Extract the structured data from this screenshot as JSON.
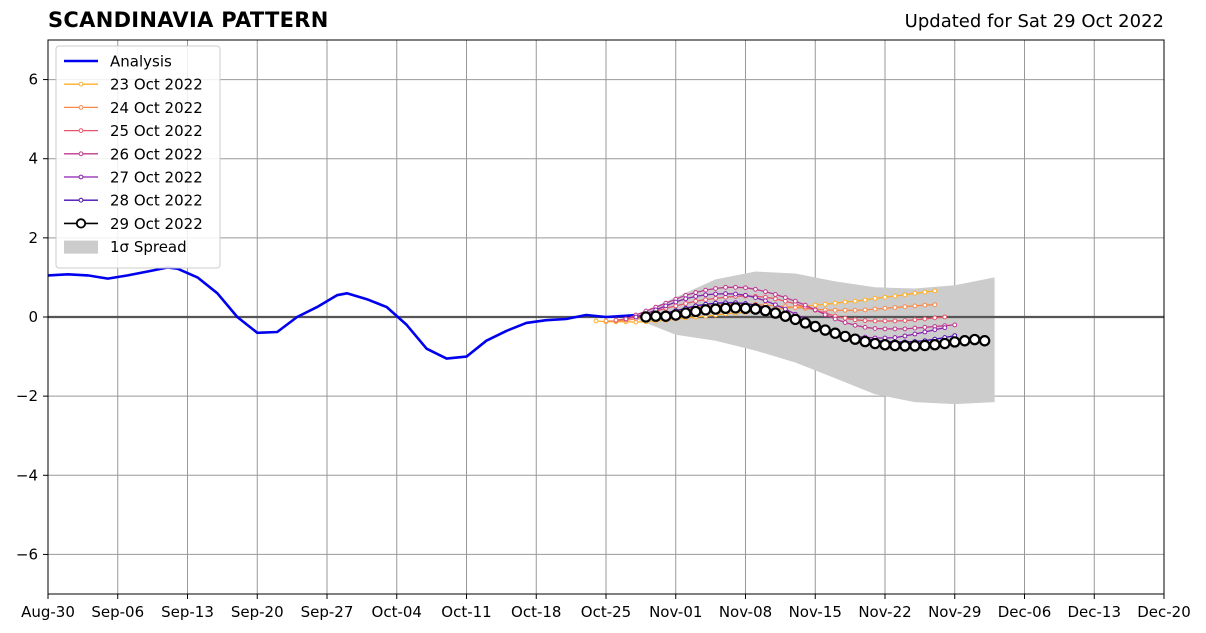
{
  "chart_data": {
    "type": "line",
    "title": "SCANDINAVIA PATTERN",
    "subtitle": "Updated for Sat 29 Oct 2022",
    "xlabel": "",
    "ylabel": "",
    "x_range": [
      "2022-08-30",
      "2022-12-20"
    ],
    "ylim": [
      -7,
      7
    ],
    "x_ticks": [
      "Aug-30",
      "Sep-06",
      "Sep-13",
      "Sep-20",
      "Sep-27",
      "Oct-04",
      "Oct-11",
      "Oct-18",
      "Oct-25",
      "Nov-01",
      "Nov-08",
      "Nov-15",
      "Nov-22",
      "Nov-29",
      "Dec-06",
      "Dec-13",
      "Dec-20"
    ],
    "x_tick_dates": [
      "2022-08-30",
      "2022-09-06",
      "2022-09-13",
      "2022-09-20",
      "2022-09-27",
      "2022-10-04",
      "2022-10-11",
      "2022-10-18",
      "2022-10-25",
      "2022-11-01",
      "2022-11-08",
      "2022-11-15",
      "2022-11-22",
      "2022-11-29",
      "2022-12-06",
      "2022-12-13",
      "2022-12-20"
    ],
    "y_ticks": [
      6,
      4,
      2,
      0,
      -2,
      -4,
      -6
    ],
    "y_tick_labels": [
      "6",
      "4",
      "2",
      "0",
      "−2",
      "−4",
      "−6"
    ],
    "grid": true,
    "legend_position": "upper-left",
    "analysis": {
      "name": "Analysis",
      "color": "#0000ee",
      "points": [
        [
          "2022-08-30",
          1.05
        ],
        [
          "2022-09-01",
          1.08
        ],
        [
          "2022-09-03",
          1.05
        ],
        [
          "2022-09-05",
          0.97
        ],
        [
          "2022-09-07",
          1.05
        ],
        [
          "2022-09-09",
          1.15
        ],
        [
          "2022-09-11",
          1.25
        ],
        [
          "2022-09-12",
          1.22
        ],
        [
          "2022-09-14",
          1.0
        ],
        [
          "2022-09-16",
          0.6
        ],
        [
          "2022-09-18",
          0.0
        ],
        [
          "2022-09-20",
          -0.4
        ],
        [
          "2022-09-22",
          -0.38
        ],
        [
          "2022-09-24",
          0.0
        ],
        [
          "2022-09-26",
          0.25
        ],
        [
          "2022-09-28",
          0.55
        ],
        [
          "2022-09-29",
          0.6
        ],
        [
          "2022-10-01",
          0.45
        ],
        [
          "2022-10-03",
          0.25
        ],
        [
          "2022-10-05",
          -0.2
        ],
        [
          "2022-10-07",
          -0.8
        ],
        [
          "2022-10-09",
          -1.05
        ],
        [
          "2022-10-11",
          -1.0
        ],
        [
          "2022-10-13",
          -0.6
        ],
        [
          "2022-10-15",
          -0.35
        ],
        [
          "2022-10-17",
          -0.15
        ],
        [
          "2022-10-19",
          -0.08
        ],
        [
          "2022-10-21",
          -0.05
        ],
        [
          "2022-10-23",
          0.05
        ],
        [
          "2022-10-25",
          0.0
        ],
        [
          "2022-10-27",
          0.03
        ],
        [
          "2022-10-28",
          0.05
        ]
      ]
    },
    "spread": {
      "name": "1σ Spread",
      "color": "#cccccc",
      "upper": [
        [
          "2022-10-28",
          0.05
        ],
        [
          "2022-11-01",
          0.5
        ],
        [
          "2022-11-05",
          0.95
        ],
        [
          "2022-11-09",
          1.15
        ],
        [
          "2022-11-13",
          1.1
        ],
        [
          "2022-11-17",
          0.9
        ],
        [
          "2022-11-21",
          0.75
        ],
        [
          "2022-11-25",
          0.72
        ],
        [
          "2022-11-29",
          0.8
        ],
        [
          "2022-12-03",
          1.0
        ]
      ],
      "lower": [
        [
          "2022-10-28",
          -0.05
        ],
        [
          "2022-11-01",
          -0.45
        ],
        [
          "2022-11-05",
          -0.6
        ],
        [
          "2022-11-09",
          -0.85
        ],
        [
          "2022-11-13",
          -1.15
        ],
        [
          "2022-11-17",
          -1.55
        ],
        [
          "2022-11-21",
          -1.95
        ],
        [
          "2022-11-25",
          -2.15
        ],
        [
          "2022-11-29",
          -2.2
        ],
        [
          "2022-12-03",
          -2.15
        ]
      ]
    },
    "forecasts": [
      {
        "name": "23 Oct 2022",
        "color": "#ffae2b",
        "start": "2022-10-24",
        "values": [
          -0.1,
          -0.12,
          -0.12,
          -0.12,
          -0.13,
          -0.12,
          -0.1,
          -0.08,
          -0.05,
          -0.02,
          0.0,
          0.02,
          0.05,
          0.08,
          0.1,
          0.12,
          0.15,
          0.18,
          0.2,
          0.22,
          0.25,
          0.27,
          0.3,
          0.32,
          0.35,
          0.38,
          0.4,
          0.43,
          0.47,
          0.5,
          0.53,
          0.56,
          0.6,
          0.63,
          0.66
        ]
      },
      {
        "name": "24 Oct 2022",
        "color": "#f88a4a",
        "start": "2022-10-25",
        "values": [
          -0.1,
          -0.1,
          -0.08,
          -0.05,
          0.0,
          0.05,
          0.1,
          0.15,
          0.2,
          0.25,
          0.28,
          0.3,
          0.32,
          0.33,
          0.33,
          0.32,
          0.3,
          0.28,
          0.26,
          0.24,
          0.22,
          0.2,
          0.18,
          0.17,
          0.17,
          0.17,
          0.18,
          0.2,
          0.22,
          0.24,
          0.26,
          0.28,
          0.3,
          0.31
        ]
      },
      {
        "name": "25 Oct 2022",
        "color": "#e8546a",
        "start": "2022-10-26",
        "values": [
          -0.08,
          -0.05,
          0.0,
          0.08,
          0.15,
          0.22,
          0.28,
          0.34,
          0.4,
          0.44,
          0.47,
          0.5,
          0.52,
          0.53,
          0.52,
          0.5,
          0.46,
          0.4,
          0.33,
          0.25,
          0.17,
          0.1,
          0.02,
          -0.03,
          -0.07,
          -0.09,
          -0.1,
          -0.1,
          -0.1,
          -0.09,
          -0.07,
          -0.05,
          -0.02,
          0.0
        ]
      },
      {
        "name": "26 Oct 2022",
        "color": "#c0388f",
        "start": "2022-10-27",
        "values": [
          -0.05,
          0.05,
          0.15,
          0.25,
          0.35,
          0.45,
          0.55,
          0.62,
          0.68,
          0.72,
          0.75,
          0.75,
          0.74,
          0.7,
          0.64,
          0.57,
          0.49,
          0.4,
          0.3,
          0.18,
          0.06,
          -0.05,
          -0.14,
          -0.21,
          -0.26,
          -0.29,
          -0.3,
          -0.3,
          -0.3,
          -0.28,
          -0.26,
          -0.24,
          -0.22,
          -0.2
        ]
      },
      {
        "name": "27 Oct 2022",
        "color": "#8a1fae",
        "start": "2022-10-28",
        "values": [
          0.0,
          0.08,
          0.18,
          0.28,
          0.38,
          0.46,
          0.52,
          0.56,
          0.58,
          0.59,
          0.58,
          0.55,
          0.49,
          0.41,
          0.31,
          0.2,
          0.07,
          -0.05,
          -0.17,
          -0.28,
          -0.37,
          -0.44,
          -0.49,
          -0.51,
          -0.53,
          -0.53,
          -0.52,
          -0.48,
          -0.43,
          -0.38,
          -0.32,
          -0.27
        ]
      },
      {
        "name": "28 Oct 2022",
        "color": "#4b0bb0",
        "start": "2022-10-29",
        "values": [
          0.0,
          0.05,
          0.1,
          0.16,
          0.22,
          0.28,
          0.32,
          0.35,
          0.36,
          0.36,
          0.34,
          0.3,
          0.24,
          0.16,
          0.07,
          -0.03,
          -0.13,
          -0.23,
          -0.32,
          -0.4,
          -0.46,
          -0.52,
          -0.56,
          -0.59,
          -0.62,
          -0.63,
          -0.63,
          -0.62,
          -0.6,
          -0.56,
          -0.52,
          -0.47
        ]
      },
      {
        "name": "29 Oct 2022",
        "color": "#000000",
        "start": "2022-10-29",
        "marker": "open-circle",
        "values": [
          0.0,
          0.02,
          0.02,
          0.05,
          0.1,
          0.14,
          0.18,
          0.2,
          0.22,
          0.23,
          0.22,
          0.2,
          0.16,
          0.1,
          0.02,
          -0.06,
          -0.15,
          -0.24,
          -0.33,
          -0.41,
          -0.49,
          -0.56,
          -0.62,
          -0.67,
          -0.7,
          -0.72,
          -0.73,
          -0.73,
          -0.72,
          -0.7,
          -0.67,
          -0.63,
          -0.6,
          -0.57,
          -0.6
        ]
      }
    ]
  }
}
